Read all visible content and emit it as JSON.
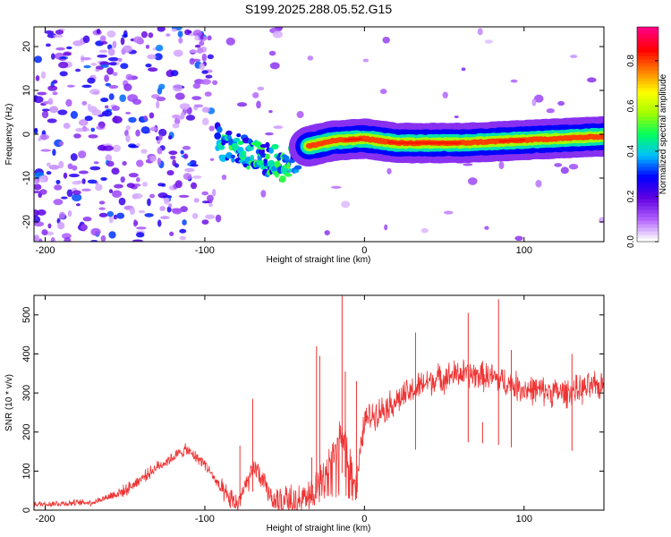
{
  "title": "S199.2025.288.05.52.G15",
  "chart_data": [
    {
      "type": "heatmap",
      "xlabel": "Height of straight line (km)",
      "ylabel": "Frequency (Hz)",
      "xlim": [
        -207,
        150
      ],
      "ylim": [
        -24.5,
        24.5
      ],
      "x_ticks": [
        -200,
        -100,
        0,
        100
      ],
      "y_ticks": [
        -20,
        -10,
        0,
        10,
        20
      ],
      "x_tick_labels": [
        "-200",
        "-100",
        "0",
        "100"
      ],
      "y_tick_labels": [
        "-20",
        "-10",
        "0",
        "10",
        "20"
      ],
      "colorbar": {
        "label": "Normalized spectral amplitude",
        "range": [
          0,
          0.95
        ],
        "ticks": [
          0,
          0.2,
          0.4,
          0.6,
          0.8
        ],
        "tick_labels": [
          "0.0",
          "0.2",
          "0.4",
          "0.6",
          "0.8"
        ],
        "colormap": [
          "#ffffff",
          "#b060ff",
          "#6000e0",
          "#0000ff",
          "#00c0ff",
          "#00ff60",
          "#a0ff00",
          "#ffff00",
          "#ff8000",
          "#ff0000",
          "#ff0080"
        ]
      },
      "ridge": [
        {
          "x": -90,
          "f": -2
        },
        {
          "x": -75,
          "f": -4
        },
        {
          "x": -60,
          "f": -6
        },
        {
          "x": -48,
          "f": -7
        },
        {
          "x": -38,
          "f": -3
        },
        {
          "x": -20,
          "f": -1.5
        },
        {
          "x": 0,
          "f": -1
        },
        {
          "x": 20,
          "f": -2
        },
        {
          "x": 60,
          "f": -2
        },
        {
          "x": 90,
          "f": -1.5
        },
        {
          "x": 120,
          "f": -1
        },
        {
          "x": 150,
          "f": -0.5
        }
      ]
    },
    {
      "type": "line",
      "xlabel": "Height of straight line (km)",
      "ylabel": "SNR (10 * v/v)",
      "xlim": [
        -207,
        150
      ],
      "ylim": [
        0,
        550
      ],
      "x_ticks": [
        -200,
        -100,
        0,
        100
      ],
      "y_ticks": [
        0,
        100,
        200,
        300,
        400,
        500
      ],
      "x_tick_labels": [
        "-200",
        "-100",
        "0",
        "100"
      ],
      "y_tick_labels": [
        "0",
        "100",
        "200",
        "300",
        "400",
        "500"
      ],
      "color": "#ee3333",
      "series_envelope": [
        {
          "x": -207,
          "y": 15
        },
        {
          "x": -170,
          "y": 20
        },
        {
          "x": -150,
          "y": 50
        },
        {
          "x": -130,
          "y": 110
        },
        {
          "x": -112,
          "y": 155
        },
        {
          "x": -100,
          "y": 120
        },
        {
          "x": -88,
          "y": 40
        },
        {
          "x": -80,
          "y": 15
        },
        {
          "x": -72,
          "y": 80
        },
        {
          "x": -68,
          "y": 110
        },
        {
          "x": -62,
          "y": 60
        },
        {
          "x": -55,
          "y": 15
        },
        {
          "x": -40,
          "y": 25
        },
        {
          "x": -30,
          "y": 60
        },
        {
          "x": -20,
          "y": 130
        },
        {
          "x": -15,
          "y": 200
        },
        {
          "x": -10,
          "y": 150
        },
        {
          "x": -5,
          "y": 60
        },
        {
          "x": 0,
          "y": 230
        },
        {
          "x": 20,
          "y": 280
        },
        {
          "x": 40,
          "y": 330
        },
        {
          "x": 60,
          "y": 350
        },
        {
          "x": 80,
          "y": 340
        },
        {
          "x": 100,
          "y": 310
        },
        {
          "x": 125,
          "y": 300
        },
        {
          "x": 150,
          "y": 320
        }
      ],
      "spikes": [
        {
          "x": -78,
          "y": 165
        },
        {
          "x": -70,
          "y": 285
        },
        {
          "x": -33,
          "y": 135
        },
        {
          "x": -30,
          "y": 420
        },
        {
          "x": -28,
          "y": 395
        },
        {
          "x": -14,
          "y": 550
        },
        {
          "x": -12,
          "y": 355
        },
        {
          "x": -5,
          "y": 330
        },
        {
          "x": 32,
          "y": 455
        },
        {
          "x": 65,
          "y": 505
        },
        {
          "x": 74,
          "y": 225
        },
        {
          "x": 84,
          "y": 540
        },
        {
          "x": 92,
          "y": 410
        },
        {
          "x": 130,
          "y": 400
        }
      ]
    }
  ]
}
